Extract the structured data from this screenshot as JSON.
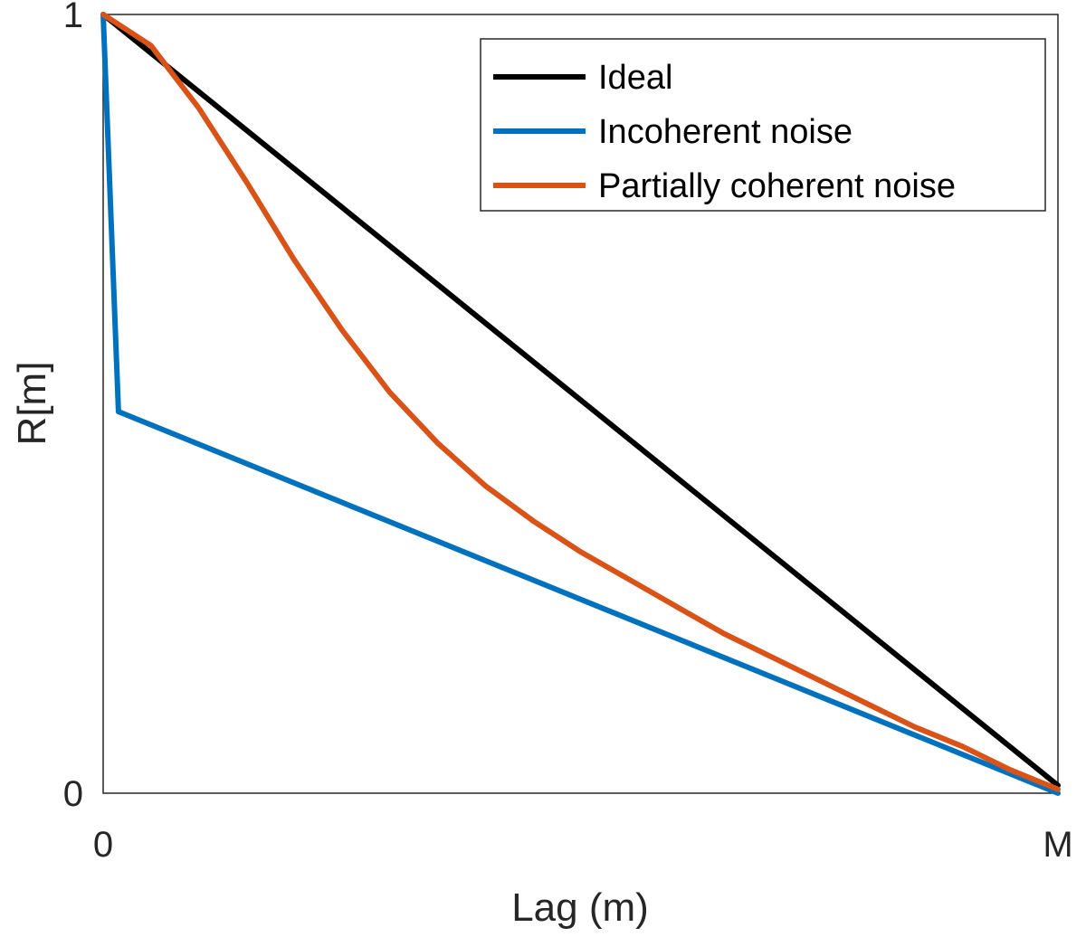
{
  "chart_data": {
    "type": "line",
    "xlabel": "Lag (m)",
    "ylabel": "R[m]",
    "xlim": [
      0,
      1
    ],
    "ylim": [
      0,
      1
    ],
    "x_ticks": [
      {
        "value": 0,
        "label": "0"
      },
      {
        "value": 1,
        "label": "M"
      }
    ],
    "y_ticks": [
      {
        "value": 0,
        "label": "0"
      },
      {
        "value": 1,
        "label": "1"
      }
    ],
    "grid": false,
    "legend_position": "top-right",
    "series": [
      {
        "name": "Ideal",
        "color": "#000000",
        "x": [
          0,
          1
        ],
        "y": [
          1,
          0.01
        ]
      },
      {
        "name": "Incoherent noise",
        "color": "#0072BD",
        "x": [
          0,
          0.016,
          1
        ],
        "y": [
          1,
          0.49,
          0
        ]
      },
      {
        "name": "Partially coherent noise",
        "color": "#D95319",
        "x": [
          0,
          0.05,
          0.1,
          0.15,
          0.2,
          0.25,
          0.3,
          0.35,
          0.4,
          0.45,
          0.5,
          0.55,
          0.6,
          0.65,
          0.7,
          0.75,
          0.8,
          0.85,
          0.9,
          0.95,
          1
        ],
        "y": [
          1,
          0.96,
          0.88,
          0.785,
          0.685,
          0.595,
          0.515,
          0.45,
          0.395,
          0.35,
          0.31,
          0.275,
          0.24,
          0.205,
          0.175,
          0.145,
          0.115,
          0.085,
          0.06,
          0.03,
          0.005
        ]
      }
    ]
  }
}
